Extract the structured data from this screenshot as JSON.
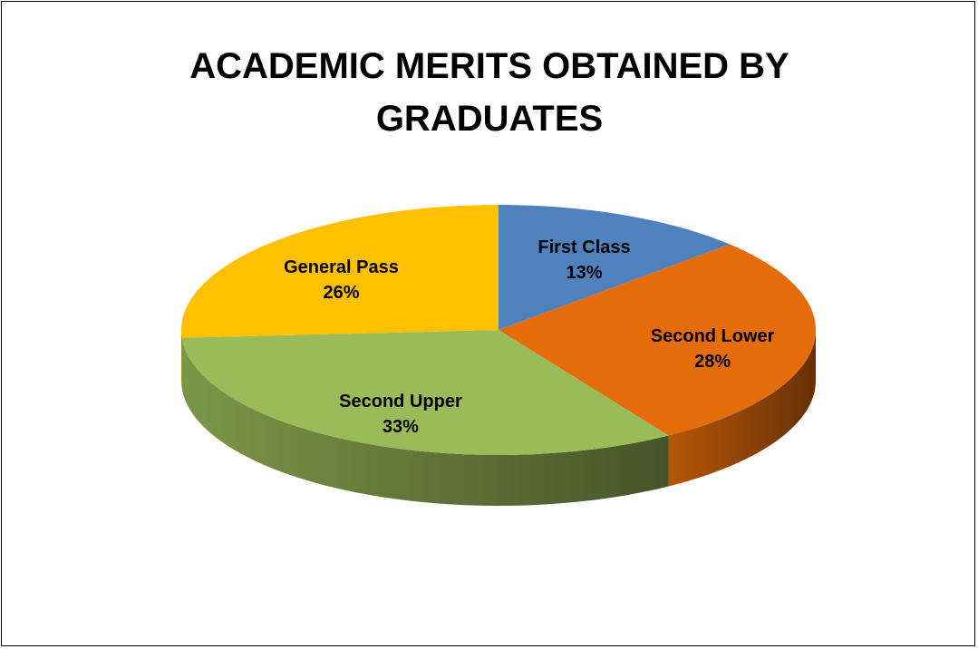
{
  "chart_data": {
    "type": "pie",
    "title": "ACADEMIC MERITS OBTAINED BY GRADUATES",
    "categories": [
      "First Class",
      "Second Lower",
      "Second Upper",
      "General Pass"
    ],
    "values": [
      13,
      28,
      33,
      26
    ],
    "value_labels": [
      "13%",
      "28%",
      "33%",
      "26%"
    ],
    "colors": [
      "#4f81bd",
      "#e46c0a",
      "#9bbb59",
      "#ffc000"
    ]
  }
}
